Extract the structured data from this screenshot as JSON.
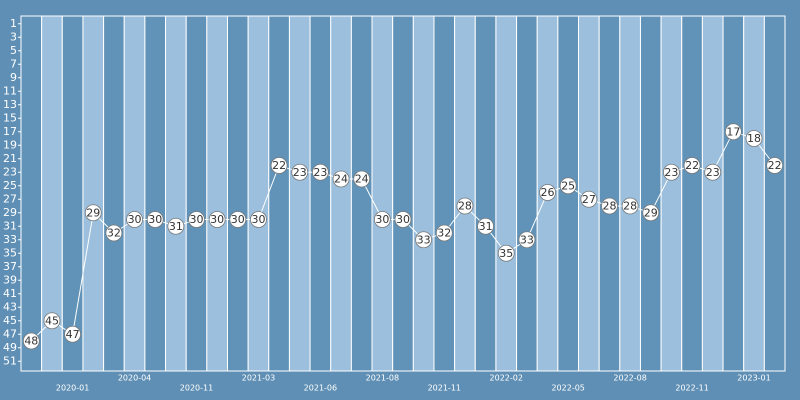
{
  "chart_data": {
    "type": "line",
    "categories": [
      null,
      null,
      "2020-01",
      null,
      null,
      "2020-04",
      null,
      null,
      "2020-11",
      null,
      null,
      "2021-03",
      null,
      null,
      "2021-06",
      null,
      null,
      "2021-08",
      null,
      null,
      "2021-11",
      null,
      null,
      "2022-02",
      null,
      null,
      "2022-05",
      null,
      null,
      "2022-08",
      null,
      null,
      "2022-11",
      null,
      null,
      "2023-01",
      null
    ],
    "values": [
      48,
      45,
      47,
      29,
      32,
      30,
      30,
      31,
      30,
      30,
      30,
      30,
      22,
      23,
      23,
      24,
      24,
      30,
      30,
      33,
      32,
      28,
      31,
      35,
      33,
      26,
      25,
      27,
      28,
      28,
      29,
      23,
      22,
      23,
      17,
      18,
      22
    ],
    "color": "#ffffff",
    "ylim": [
      52,
      0
    ],
    "yticks": [
      1,
      3,
      5,
      7,
      9,
      11,
      13,
      15,
      17,
      19,
      21,
      23,
      25,
      27,
      29,
      31,
      33,
      35,
      37,
      39,
      41,
      43,
      45,
      47,
      49,
      51
    ]
  }
}
